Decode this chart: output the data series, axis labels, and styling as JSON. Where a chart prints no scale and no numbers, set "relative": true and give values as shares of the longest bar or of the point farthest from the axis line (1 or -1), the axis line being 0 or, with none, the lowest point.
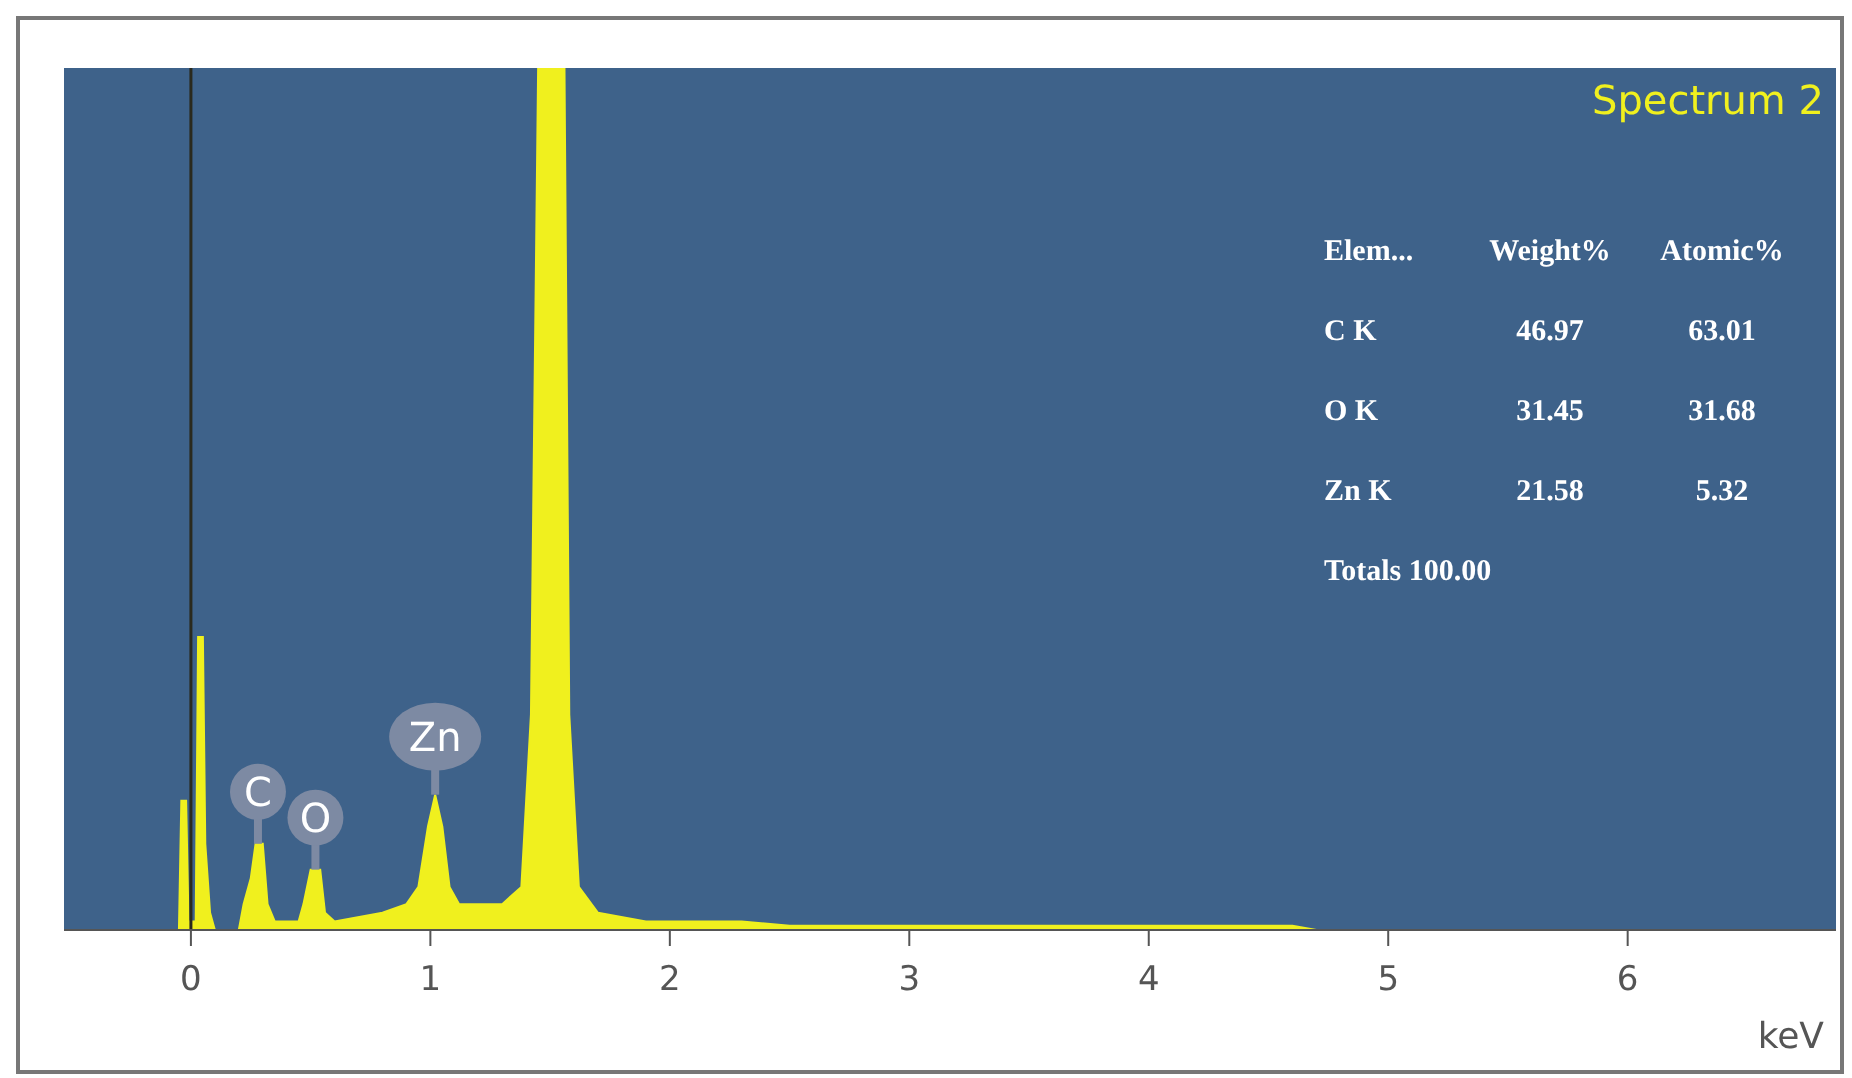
{
  "chart_data": {
    "type": "area",
    "title": "Spectrum 2",
    "xlabel": "keV",
    "relative": true,
    "tick_labels": "x",
    "xlim": [
      -0.53,
      6.87
    ],
    "xticks": [
      0,
      1,
      2,
      3,
      4,
      5,
      6
    ],
    "x": [
      -0.53,
      -0.05,
      -0.04,
      -0.02,
      -0.01,
      0.02,
      0.03,
      0.05,
      0.06,
      0.08,
      0.1,
      0.2,
      0.22,
      0.25,
      0.27,
      0.3,
      0.32,
      0.35,
      0.45,
      0.47,
      0.5,
      0.54,
      0.56,
      0.6,
      0.8,
      0.9,
      0.95,
      0.99,
      1.02,
      1.05,
      1.08,
      1.12,
      1.3,
      1.38,
      1.42,
      1.45,
      1.56,
      1.58,
      1.62,
      1.7,
      1.9,
      2.3,
      2.5,
      4.6,
      4.7,
      6.87
    ],
    "series": [
      {
        "color": "#f0f01e",
        "values": [
          0,
          0,
          0.15,
          0.15,
          0.01,
          0.01,
          0.34,
          0.34,
          0.1,
          0.02,
          0,
          0,
          0.03,
          0.06,
          0.1,
          0.1,
          0.03,
          0.01,
          0.01,
          0.03,
          0.07,
          0.07,
          0.02,
          0.01,
          0.02,
          0.03,
          0.05,
          0.12,
          0.157,
          0.12,
          0.05,
          0.03,
          0.03,
          0.05,
          0.25,
          1,
          1,
          0.25,
          0.05,
          0.02,
          0.01,
          0.01,
          0.005,
          0.005,
          0,
          0
        ]
      }
    ],
    "ref_lines": [
      {
        "axis": "x",
        "value": 0,
        "color": "#2a2a1e"
      }
    ],
    "annotations": [
      {
        "text": "C",
        "x": 0.28,
        "y": 0.1
      },
      {
        "text": "O",
        "x": 0.52,
        "y": 0.07
      },
      {
        "text": "Zn",
        "x": 1.02,
        "y": 0.157
      },
      "Elem...",
      "Weight%",
      "Atomic%",
      "C K",
      "46.97",
      "63.01",
      "O K",
      "31.45",
      "31.68",
      "Zn K",
      "21.58",
      "5.32",
      "Totals 100.00"
    ]
  }
}
